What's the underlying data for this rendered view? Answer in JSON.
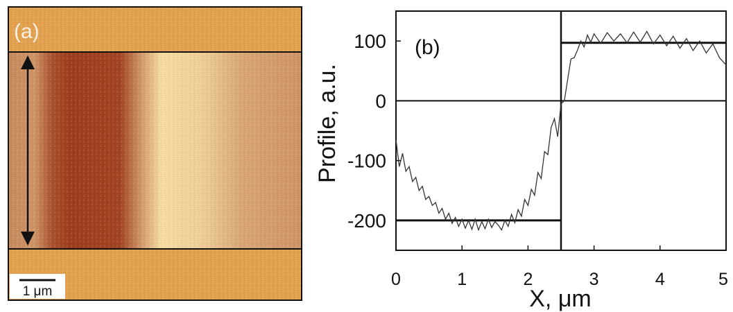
{
  "panel_a": {
    "label": "(a)",
    "scale_bar_label": "1 μm",
    "colors": {
      "background": "#e3a04e",
      "dark_stripe": "#9e3d1d",
      "light_stripe": "#f6dba0",
      "frame": "#111111"
    },
    "stripe_profile": [
      {
        "x_um": 0.0,
        "level": 0.48
      },
      {
        "x_um": 0.45,
        "level": 0.55
      },
      {
        "x_um": 0.75,
        "level": 0.12
      },
      {
        "x_um": 1.05,
        "level": 0.0
      },
      {
        "x_um": 1.9,
        "level": 0.04
      },
      {
        "x_um": 2.25,
        "level": 0.55
      },
      {
        "x_um": 2.6,
        "level": 1.0
      },
      {
        "x_um": 3.3,
        "level": 0.92
      },
      {
        "x_um": 4.0,
        "level": 0.66
      },
      {
        "x_um": 5.0,
        "level": 0.55
      }
    ]
  },
  "chart_data": {
    "type": "line",
    "panel_label": "(b)",
    "xlabel": "X, μm",
    "ylabel": "Profile, a.u.",
    "xlim": [
      0,
      5
    ],
    "ylim": [
      -250,
      150
    ],
    "x_ticks": [
      0,
      1,
      2,
      3,
      4,
      5
    ],
    "y_ticks": [
      100,
      0,
      -100,
      -200
    ],
    "grid": false,
    "series": [
      {
        "x": [
          0.0,
          0.05,
          0.1,
          0.15,
          0.2,
          0.25,
          0.3,
          0.35,
          0.4,
          0.45,
          0.5,
          0.55,
          0.6,
          0.65,
          0.7,
          0.75,
          0.8,
          0.85,
          0.9,
          0.95,
          1.0,
          1.05,
          1.1,
          1.15,
          1.2,
          1.25,
          1.3,
          1.35,
          1.4,
          1.45,
          1.5,
          1.55,
          1.6,
          1.65,
          1.7,
          1.75,
          1.8,
          1.85,
          1.9,
          1.95,
          2.0,
          2.05,
          2.1,
          2.15,
          2.2,
          2.25,
          2.3,
          2.35,
          2.4,
          2.45,
          2.5,
          2.55,
          2.6,
          2.65,
          2.7,
          2.75,
          2.8,
          2.85,
          2.9,
          2.95,
          3.0,
          3.1,
          3.2,
          3.3,
          3.4,
          3.5,
          3.6,
          3.7,
          3.8,
          3.9,
          4.0,
          4.1,
          4.2,
          4.3,
          4.4,
          4.5,
          4.6,
          4.7,
          4.8,
          4.9,
          5.0
        ],
        "y": [
          -65,
          -110,
          -88,
          -118,
          -110,
          -135,
          -128,
          -150,
          -143,
          -165,
          -160,
          -175,
          -170,
          -188,
          -180,
          -198,
          -188,
          -205,
          -195,
          -210,
          -198,
          -213,
          -200,
          -215,
          -198,
          -216,
          -202,
          -214,
          -198,
          -212,
          -202,
          -208,
          -216,
          -200,
          -210,
          -190,
          -204,
          -182,
          -193,
          -165,
          -175,
          -148,
          -158,
          -120,
          -130,
          -85,
          -90,
          -45,
          -30,
          -60,
          -5,
          0,
          35,
          70,
          72,
          85,
          100,
          90,
          110,
          98,
          112,
          96,
          114,
          100,
          112,
          97,
          115,
          98,
          116,
          95,
          110,
          92,
          108,
          88,
          104,
          84,
          100,
          80,
          95,
          72,
          60
        ]
      }
    ],
    "reference_lines": {
      "step_low": -200,
      "step_high": 97,
      "step_at_x": 2.5
    }
  }
}
